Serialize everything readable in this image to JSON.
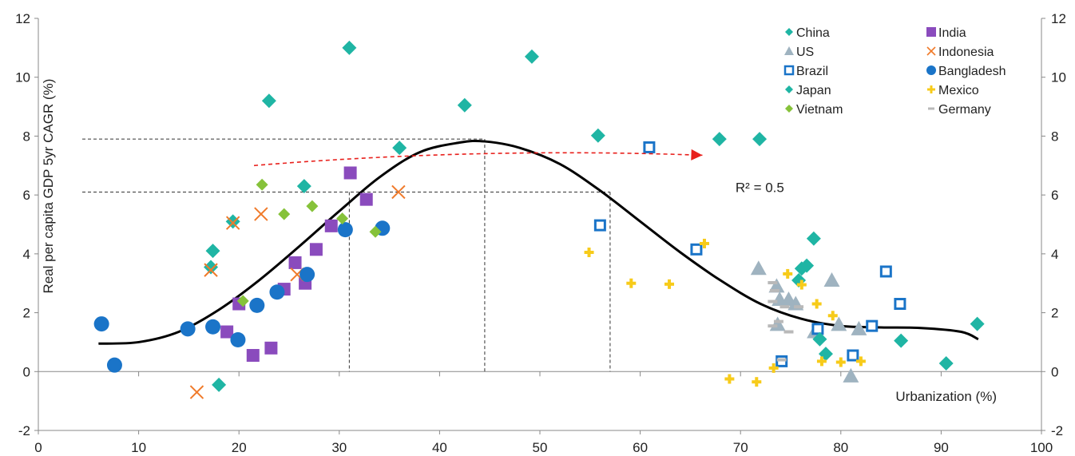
{
  "chart_data": {
    "type": "scatter",
    "xlabel": "Urbanization (%)",
    "ylabel": "Real per capita GDP 5yr CAGR (%)",
    "xlim": [
      0,
      100
    ],
    "ylim": [
      -2,
      12
    ],
    "x_ticks": [
      "0",
      "10",
      "20",
      "30",
      "40",
      "50",
      "60",
      "70",
      "80",
      "90",
      "100"
    ],
    "y_ticks": [
      "-2",
      "0",
      "2",
      "4",
      "6",
      "8",
      "10",
      "12"
    ],
    "y2_ticks": [
      "-2",
      "0",
      "2",
      "4",
      "6",
      "8",
      "10",
      "12"
    ],
    "grid": false,
    "legend_position": "top-right",
    "annotation": "R² = 0.5",
    "colors": {
      "teal": "#1fb5a4",
      "purple": "#8a4bbd",
      "orange": "#f07a2a",
      "grey": "#9fb3c0",
      "blue": "#1a74c8",
      "yellow": "#f7cb1a",
      "green": "#86c23a",
      "lightgrey": "#b9b9b9",
      "arrow": "#e8201c"
    },
    "series": [
      {
        "name": "China",
        "marker": "diamond",
        "color": "#1fb5a4",
        "points": [
          [
            17.4,
            4.1
          ],
          [
            17.2,
            3.55
          ],
          [
            19.4,
            5.1
          ],
          [
            23.0,
            9.2
          ],
          [
            26.5,
            6.3
          ],
          [
            31.0,
            11.0
          ],
          [
            36.0,
            7.6
          ],
          [
            42.5,
            9.05
          ],
          [
            49.2,
            10.7
          ],
          [
            18.0,
            -0.45
          ]
        ]
      },
      {
        "name": "India",
        "marker": "square",
        "color": "#8a4bbd",
        "points": [
          [
            18.8,
            1.35
          ],
          [
            20.0,
            2.3
          ],
          [
            21.4,
            0.55
          ],
          [
            23.2,
            0.8
          ],
          [
            24.5,
            2.8
          ],
          [
            25.6,
            3.7
          ],
          [
            26.6,
            3.0
          ],
          [
            27.7,
            4.15
          ],
          [
            29.2,
            4.95
          ],
          [
            31.1,
            6.75
          ],
          [
            32.7,
            5.85
          ]
        ]
      },
      {
        "name": "US",
        "marker": "triangle",
        "color": "#9fb3c0",
        "points": [
          [
            71.8,
            3.5
          ],
          [
            73.6,
            2.9
          ],
          [
            73.9,
            2.45
          ],
          [
            74.8,
            2.45
          ],
          [
            75.5,
            2.3
          ],
          [
            73.7,
            1.6
          ],
          [
            77.4,
            1.35
          ],
          [
            79.1,
            3.1
          ],
          [
            79.8,
            1.6
          ],
          [
            81.8,
            1.45
          ],
          [
            81.0,
            -0.15
          ]
        ]
      },
      {
        "name": "Indonesia",
        "marker": "x",
        "color": "#f07a2a",
        "points": [
          [
            15.8,
            -0.7
          ],
          [
            17.2,
            3.45
          ],
          [
            19.4,
            5.05
          ],
          [
            22.2,
            5.35
          ],
          [
            25.8,
            3.3
          ],
          [
            35.9,
            6.1
          ]
        ]
      },
      {
        "name": "Brazil",
        "marker": "hollow-square",
        "color": "#1a74c8",
        "points": [
          [
            56.0,
            4.97
          ],
          [
            60.9,
            7.62
          ],
          [
            65.6,
            4.15
          ],
          [
            74.1,
            0.35
          ],
          [
            77.7,
            1.45
          ],
          [
            81.2,
            0.55
          ],
          [
            83.1,
            1.55
          ],
          [
            84.5,
            3.4
          ],
          [
            85.9,
            2.3
          ]
        ]
      },
      {
        "name": "Bangladesh",
        "marker": "circle",
        "color": "#1a74c8",
        "points": [
          [
            6.3,
            1.62
          ],
          [
            7.6,
            0.22
          ],
          [
            14.9,
            1.45
          ],
          [
            17.4,
            1.52
          ],
          [
            19.9,
            1.08
          ],
          [
            21.8,
            2.25
          ],
          [
            23.8,
            2.7
          ],
          [
            26.8,
            3.3
          ],
          [
            30.6,
            4.82
          ],
          [
            34.3,
            4.87
          ]
        ]
      },
      {
        "name": "Japan",
        "marker": "diamond",
        "color": "#1fb5a4",
        "points": [
          [
            55.8,
            8.02
          ],
          [
            67.9,
            7.9
          ],
          [
            71.9,
            7.9
          ],
          [
            77.3,
            4.52
          ],
          [
            76.1,
            3.5
          ],
          [
            76.6,
            3.6
          ],
          [
            75.8,
            3.1
          ],
          [
            77.9,
            1.1
          ],
          [
            78.5,
            0.6
          ],
          [
            86.0,
            1.05
          ],
          [
            90.5,
            0.28
          ],
          [
            93.6,
            1.62
          ]
        ]
      },
      {
        "name": "Mexico",
        "marker": "plus",
        "color": "#f7cb1a",
        "points": [
          [
            54.9,
            4.05
          ],
          [
            59.1,
            3.0
          ],
          [
            62.9,
            2.97
          ],
          [
            66.4,
            4.35
          ],
          [
            68.9,
            -0.25
          ],
          [
            71.6,
            -0.35
          ],
          [
            73.3,
            0.12
          ],
          [
            74.7,
            3.32
          ],
          [
            76.1,
            2.95
          ],
          [
            77.6,
            2.3
          ],
          [
            78.1,
            0.35
          ],
          [
            80.0,
            0.32
          ],
          [
            82.0,
            0.35
          ],
          [
            79.2,
            1.9
          ]
        ]
      },
      {
        "name": "Vietnam",
        "marker": "diamond-small",
        "color": "#86c23a",
        "points": [
          [
            20.4,
            2.4
          ],
          [
            22.3,
            6.35
          ],
          [
            24.5,
            5.35
          ],
          [
            27.3,
            5.62
          ],
          [
            30.3,
            5.2
          ],
          [
            33.6,
            4.75
          ]
        ]
      },
      {
        "name": "Germany",
        "marker": "dash",
        "color": "#b9b9b9",
        "points": [
          [
            73.2,
            3.02
          ],
          [
            73.4,
            2.75
          ],
          [
            73.2,
            2.38
          ],
          [
            74.4,
            2.2
          ],
          [
            75.8,
            2.2
          ],
          [
            73.2,
            1.55
          ],
          [
            73.8,
            1.7
          ],
          [
            74.8,
            1.35
          ],
          [
            74.1,
            0.4
          ]
        ]
      }
    ],
    "fit_curve": {
      "x": [
        6,
        10,
        14,
        18,
        22,
        26,
        30,
        34,
        38,
        42,
        44.5,
        48,
        52,
        56,
        60,
        64,
        68,
        72,
        76,
        80,
        84,
        88,
        92,
        93.7
      ],
      "y": [
        0.95,
        1.0,
        1.35,
        2.1,
        3.1,
        4.25,
        5.45,
        6.6,
        7.45,
        7.78,
        7.82,
        7.6,
        7.05,
        6.15,
        5.1,
        4.05,
        3.1,
        2.3,
        1.8,
        1.55,
        1.5,
        1.48,
        1.35,
        1.1
      ]
    },
    "guide_lines": [
      {
        "y": 7.9,
        "x_from": 0,
        "x_to": 44.5,
        "x_drop": 44.5
      },
      {
        "y": 6.1,
        "x_from": 0,
        "x_to": 57.0,
        "x_drop": 57.0
      },
      {
        "drop_only": true,
        "x": 31.0,
        "y": 6.1
      }
    ],
    "arrow": {
      "from": [
        21.5,
        7.0
      ],
      "mid": [
        44,
        10.1
      ],
      "to": [
        66.2,
        7.35
      ]
    }
  }
}
